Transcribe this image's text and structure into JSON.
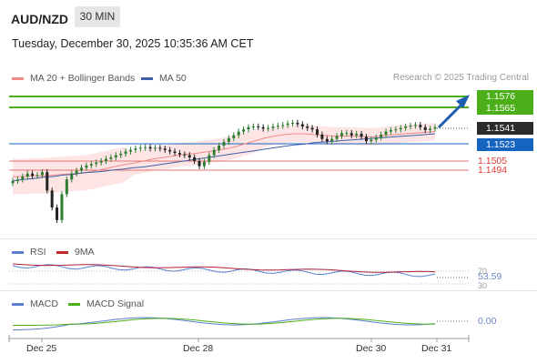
{
  "header": {
    "symbol": "AUD/NZD",
    "timeframe": "30 MIN",
    "datetime": "Tuesday, December 30, 2025 10:35:36 AM CET"
  },
  "legend": {
    "ma20": "MA 20 + Bollinger Bands",
    "ma50": "MA 50",
    "credit": "Research © 2025 Trading Central"
  },
  "price_labels": {
    "target_upper": "1.1576",
    "target_lower": "1.1565",
    "last": "1.1541",
    "pivot": "1.1523",
    "support1": "1.1505",
    "support2": "1.1494"
  },
  "rsi_panel": {
    "label": "RSI",
    "ma_label": "9MA",
    "level_top": "70",
    "value": "53.59",
    "level_bottom": "30"
  },
  "macd_panel": {
    "label": "MACD",
    "signal_label": "MACD Signal",
    "value": "0.00"
  },
  "x_axis": {
    "labels": [
      "Dec 25",
      "Dec 28",
      "Dec 30",
      "Dec 31"
    ]
  },
  "colors": {
    "target_green": "#4caf1a",
    "pivot_blue": "#1565c0",
    "support_red": "#e53935",
    "bb_fill": "#fde0e0",
    "ma20": "#f08a8a",
    "ma50": "#3f5fa8",
    "candle_up": "#2e7d32",
    "candle_down": "#222222"
  },
  "chart_data": {
    "type": "line",
    "title": "AUD/NZD",
    "x_labels": [
      "Dec 25",
      "Dec 28",
      "Dec 30",
      "Dec 31"
    ],
    "price": {
      "close_series": [
        1.1468,
        1.147,
        1.1474,
        1.1478,
        1.1475,
        1.1476,
        1.148,
        1.1455,
        1.1432,
        1.1415,
        1.145,
        1.147,
        1.1478,
        1.1482,
        1.1486,
        1.1489,
        1.1491,
        1.1493,
        1.1495,
        1.1498,
        1.15,
        1.1503,
        1.1505,
        1.1508,
        1.151,
        1.1512,
        1.1513,
        1.1514,
        1.1512,
        1.1513,
        1.1512,
        1.151,
        1.1508,
        1.1506,
        1.1504,
        1.1503,
        1.15,
        1.1495,
        1.1488,
        1.1494,
        1.1503,
        1.151,
        1.1516,
        1.1521,
        1.1526,
        1.153,
        1.1535,
        1.1538,
        1.1541,
        1.1542,
        1.1541,
        1.1539,
        1.154,
        1.1542,
        1.1543,
        1.1544,
        1.1546,
        1.1547,
        1.1545,
        1.1542,
        1.154,
        1.1538,
        1.1531,
        1.1525,
        1.1522,
        1.1525,
        1.1529,
        1.1533,
        1.1533,
        1.153,
        1.1532,
        1.1528,
        1.1522,
        1.1524,
        1.1527,
        1.1531,
        1.1535,
        1.1537,
        1.1538,
        1.154,
        1.1542,
        1.1543,
        1.1544,
        1.1541,
        1.1537,
        1.1539,
        1.1541
      ],
      "ma20": [
        1.1474,
        1.1474,
        1.1475,
        1.1475,
        1.1476,
        1.1477,
        1.1478,
        1.1479,
        1.1481,
        1.1484,
        1.1487,
        1.149,
        1.1492,
        1.1495,
        1.1498,
        1.15,
        1.1502,
        1.1504,
        1.1505,
        1.1507,
        1.1509,
        1.1511,
        1.1514,
        1.1518,
        1.1522,
        1.1526,
        1.1529,
        1.1531,
        1.1532,
        1.1532,
        1.1531,
        1.153,
        1.1529,
        1.1529,
        1.1529,
        1.1528,
        1.1528,
        1.153,
        1.1531,
        1.1532,
        1.1533,
        1.1534,
        1.1535
      ],
      "ma50": [
        1.1468,
        1.147,
        1.1471,
        1.1473,
        1.1474,
        1.1476,
        1.1477,
        1.1479,
        1.148,
        1.1481,
        1.1483,
        1.1484,
        1.1486,
        1.1487,
        1.1489,
        1.1491,
        1.1493,
        1.1495,
        1.1497,
        1.1499,
        1.1501,
        1.1503,
        1.1505,
        1.1507,
        1.1509,
        1.1511,
        1.1513,
        1.1515,
        1.1517,
        1.1518,
        1.152,
        1.1521,
        1.1522,
        1.1523,
        1.1524,
        1.1525,
        1.1526,
        1.1527,
        1.1528,
        1.1529,
        1.153,
        1.1531,
        1.1532
      ],
      "levels": {
        "target_upper": 1.1576,
        "target_lower": 1.1565,
        "last": 1.1541,
        "pivot": 1.1523,
        "support1": 1.1505,
        "support2": 1.1494
      },
      "ylim": [
        1.139,
        1.16
      ]
    },
    "rsi": {
      "value": 53.59,
      "levels": [
        70,
        30
      ]
    },
    "macd": {
      "value": 0.0
    }
  }
}
